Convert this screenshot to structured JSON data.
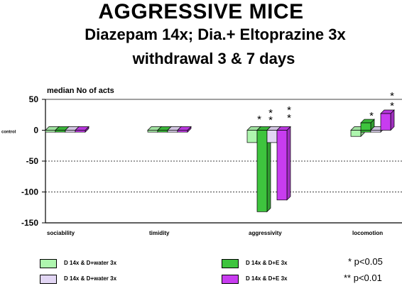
{
  "chart_data": {
    "type": "bar",
    "title": "AGGRESSIVE MICE",
    "subtitle_line1": "Diazepam 14x; Dia.+ Eltoprazine 3x",
    "subtitle_line2": "withdrawal 3 & 7 days",
    "ylabel": "median No of acts",
    "zero_label": "control",
    "ylim": [
      -150,
      50
    ],
    "yticks": [
      "50",
      "0",
      "-50",
      "-100",
      "-150"
    ],
    "ytick_values": [
      50,
      0,
      -50,
      -100,
      -150
    ],
    "gridlines": [
      -50,
      -100
    ],
    "categories": [
      "sociability",
      "timidity",
      "aggressivity",
      "locomotion"
    ],
    "series": [
      {
        "name": "D 14x & D+water 3x",
        "color": "#aef5ae",
        "values": [
          -3,
          -3,
          -20,
          -10
        ]
      },
      {
        "name": "D 14x & D+E 3x",
        "color": "#3ec43e",
        "values": [
          -3,
          -3,
          -132,
          -3
        ]
      },
      {
        "name": "D 14x & D+water 3x",
        "color": "#e2d6f4",
        "values": [
          -3,
          -3,
          -20,
          -3
        ]
      },
      {
        "name": "D 14x & D+E 3x",
        "color": "#c83cf0",
        "values": [
          -3,
          -3,
          -113,
          27
        ]
      }
    ],
    "series_values_extra": [
      [
        0,
        0,
        0,
        0
      ],
      [
        0,
        0,
        0,
        12
      ],
      [
        0,
        0,
        0,
        0
      ],
      [
        0,
        0,
        0,
        0
      ]
    ],
    "significance": {
      "single": "* p<0.05",
      "double": "** p<0.01"
    }
  }
}
